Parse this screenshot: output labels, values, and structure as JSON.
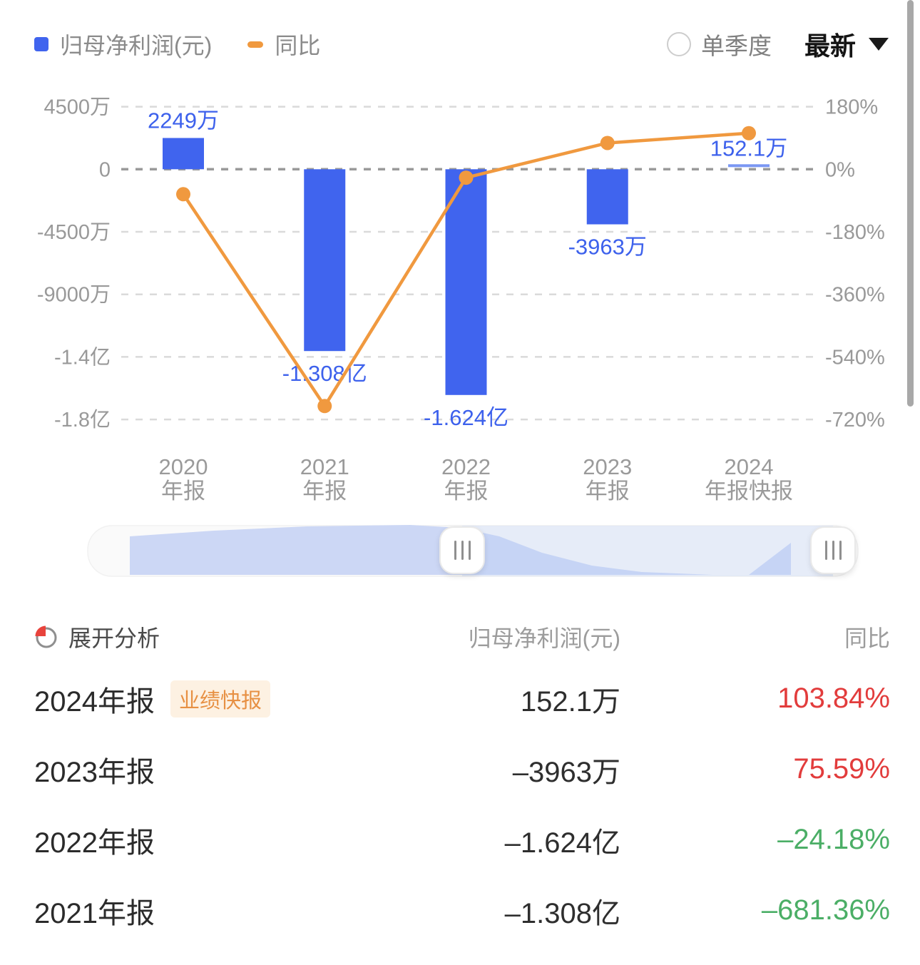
{
  "legend": {
    "profit_label": "归母净利润(元)",
    "yoy_label": "同比"
  },
  "controls": {
    "radio_label": "单季度",
    "period_value": "最新"
  },
  "chart_data": {
    "type": "bar+line",
    "categories": [
      [
        "2020",
        "年报"
      ],
      [
        "2021",
        "年报"
      ],
      [
        "2022",
        "年报"
      ],
      [
        "2023",
        "年报"
      ],
      [
        "2024",
        "年报快报"
      ]
    ],
    "series": [
      {
        "name": "归母净利润(元)",
        "type": "bar",
        "values": [
          22490000,
          -130800000,
          -162400000,
          -39630000,
          1521000
        ],
        "labels": [
          "2249万",
          "-1.308亿",
          "-1.624亿",
          "-3963万",
          "152.1万"
        ]
      },
      {
        "name": "同比",
        "type": "line",
        "unit": "%",
        "values": [
          -71.8,
          -681.36,
          -24.18,
          75.59,
          103.84
        ],
        "note_2020": "estimated from plot position; not labeled on screen"
      }
    ],
    "left_axis": {
      "ticks": [
        "4500万",
        "0",
        "-4500万",
        "-9000万",
        "-1.4亿",
        "-1.8亿"
      ],
      "values": [
        45000000,
        0,
        -45000000,
        -90000000,
        -135000000,
        -180000000
      ]
    },
    "right_axis": {
      "ticks": [
        "180%",
        "0%",
        "-180%",
        "-360%",
        "-540%",
        "-720%"
      ],
      "values": [
        180,
        0,
        -180,
        -360,
        -540,
        -720
      ]
    },
    "grid": "dashed horizontal",
    "legend_position": "top-left"
  },
  "table": {
    "expand_label": "展开分析",
    "col_profit": "归母净利润(元)",
    "col_yoy": "同比",
    "rows": [
      {
        "period": "2024年报",
        "badge": "业绩快报",
        "profit": "152.1万",
        "yoy": "103.84%",
        "yoy_color": "#e23c3c"
      },
      {
        "period": "2023年报",
        "badge": "",
        "profit": "–3963万",
        "yoy": "75.59%",
        "yoy_color": "#e23c3c"
      },
      {
        "period": "2022年报",
        "badge": "",
        "profit": "–1.624亿",
        "yoy": "–24.18%",
        "yoy_color": "#4bae66"
      },
      {
        "period": "2021年报",
        "badge": "",
        "profit": "–1.308亿",
        "yoy": "–681.36%",
        "yoy_color": "#4bae66"
      }
    ]
  },
  "colors": {
    "bar": "#4064ee",
    "bar_tiny": "#7b97f3",
    "line": "#f0993f",
    "value_label": "#3d61ec",
    "axis_text": "#999999",
    "zero_line": "#9a9a9a",
    "grid_line": "#dadada",
    "up_red": "#e23c3c",
    "down_green": "#4bae66",
    "badge_text": "#e79043",
    "badge_bg": "#fdf1e2"
  }
}
